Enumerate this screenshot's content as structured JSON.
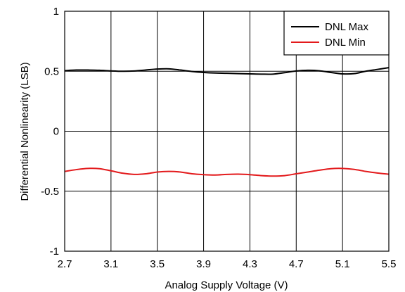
{
  "chart_data": {
    "type": "line",
    "title": "",
    "xlabel": "Analog Supply Voltage (V)",
    "ylabel": "Differential Nonlinearity (LSB)",
    "xlim": [
      2.7,
      5.5
    ],
    "ylim": [
      -1,
      1
    ],
    "x_ticks": [
      2.7,
      3.1,
      3.5,
      3.9,
      4.3,
      4.7,
      5.1,
      5.5
    ],
    "x_tick_labels": [
      "2.7",
      "3.1",
      "3.5",
      "3.9",
      "4.3",
      "4.7",
      "5.1",
      "5.5"
    ],
    "y_ticks": [
      1,
      0.5,
      0,
      -0.5,
      -1
    ],
    "y_tick_labels": [
      "1",
      "0.5",
      "0",
      "-0.5",
      "-1"
    ],
    "grid": true,
    "legend_position": "top-right",
    "series": [
      {
        "name": "DNL Max",
        "color": "#000000",
        "x": [
          2.7,
          2.8,
          2.9,
          3.0,
          3.1,
          3.2,
          3.3,
          3.4,
          3.5,
          3.6,
          3.7,
          3.8,
          3.9,
          4.0,
          4.1,
          4.2,
          4.3,
          4.4,
          4.5,
          4.6,
          4.7,
          4.8,
          4.9,
          5.0,
          5.1,
          5.2,
          5.3,
          5.4,
          5.5
        ],
        "y": [
          0.505,
          0.51,
          0.51,
          0.508,
          0.503,
          0.5,
          0.502,
          0.51,
          0.518,
          0.52,
          0.51,
          0.498,
          0.49,
          0.485,
          0.483,
          0.48,
          0.478,
          0.476,
          0.476,
          0.488,
          0.502,
          0.508,
          0.504,
          0.49,
          0.478,
          0.48,
          0.5,
          0.515,
          0.53
        ]
      },
      {
        "name": "DNL Min",
        "color": "#e31a1c",
        "x": [
          2.7,
          2.8,
          2.9,
          3.0,
          3.1,
          3.2,
          3.3,
          3.4,
          3.5,
          3.6,
          3.7,
          3.8,
          3.9,
          4.0,
          4.1,
          4.2,
          4.3,
          4.4,
          4.5,
          4.6,
          4.7,
          4.8,
          4.9,
          5.0,
          5.1,
          5.2,
          5.3,
          5.4,
          5.5
        ],
        "y": [
          -0.335,
          -0.32,
          -0.31,
          -0.312,
          -0.33,
          -0.35,
          -0.36,
          -0.355,
          -0.34,
          -0.335,
          -0.34,
          -0.355,
          -0.362,
          -0.365,
          -0.36,
          -0.358,
          -0.362,
          -0.37,
          -0.374,
          -0.37,
          -0.355,
          -0.34,
          -0.325,
          -0.312,
          -0.31,
          -0.318,
          -0.335,
          -0.348,
          -0.358
        ]
      }
    ]
  }
}
